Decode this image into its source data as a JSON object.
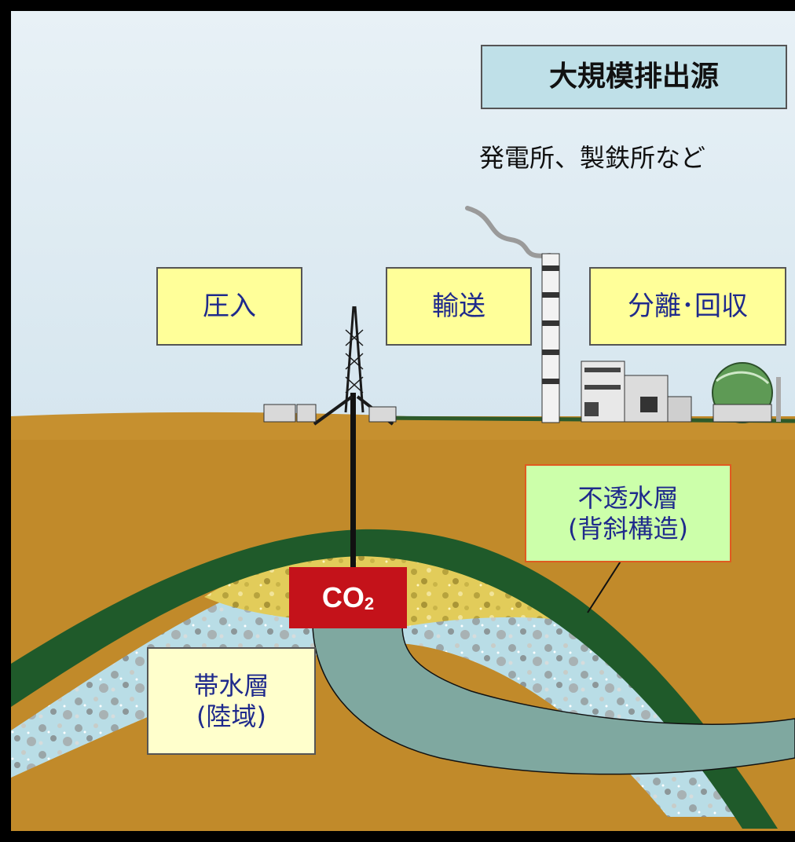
{
  "source_label": "大規模排出源",
  "source_examples": "発電所、製鉄所など",
  "steps": {
    "injection": "圧入",
    "transport": "輸送",
    "separation": "分離･回収"
  },
  "caprock": {
    "line1": "不透水層",
    "line2": "(背斜構造)"
  },
  "aquifer": {
    "line1": "帯水層",
    "line2": "(陸域)"
  },
  "co2": {
    "main": "CO",
    "subscript": "2",
    "color": "#c4121a"
  },
  "colors": {
    "ground": "#c18a2a",
    "caprock": "#1f5a2a",
    "aquifer": "#b9dde6",
    "co2_zone": "#e2cc5a",
    "co2_plume": "#7fa8a0",
    "sky": "#dbe9f2"
  }
}
